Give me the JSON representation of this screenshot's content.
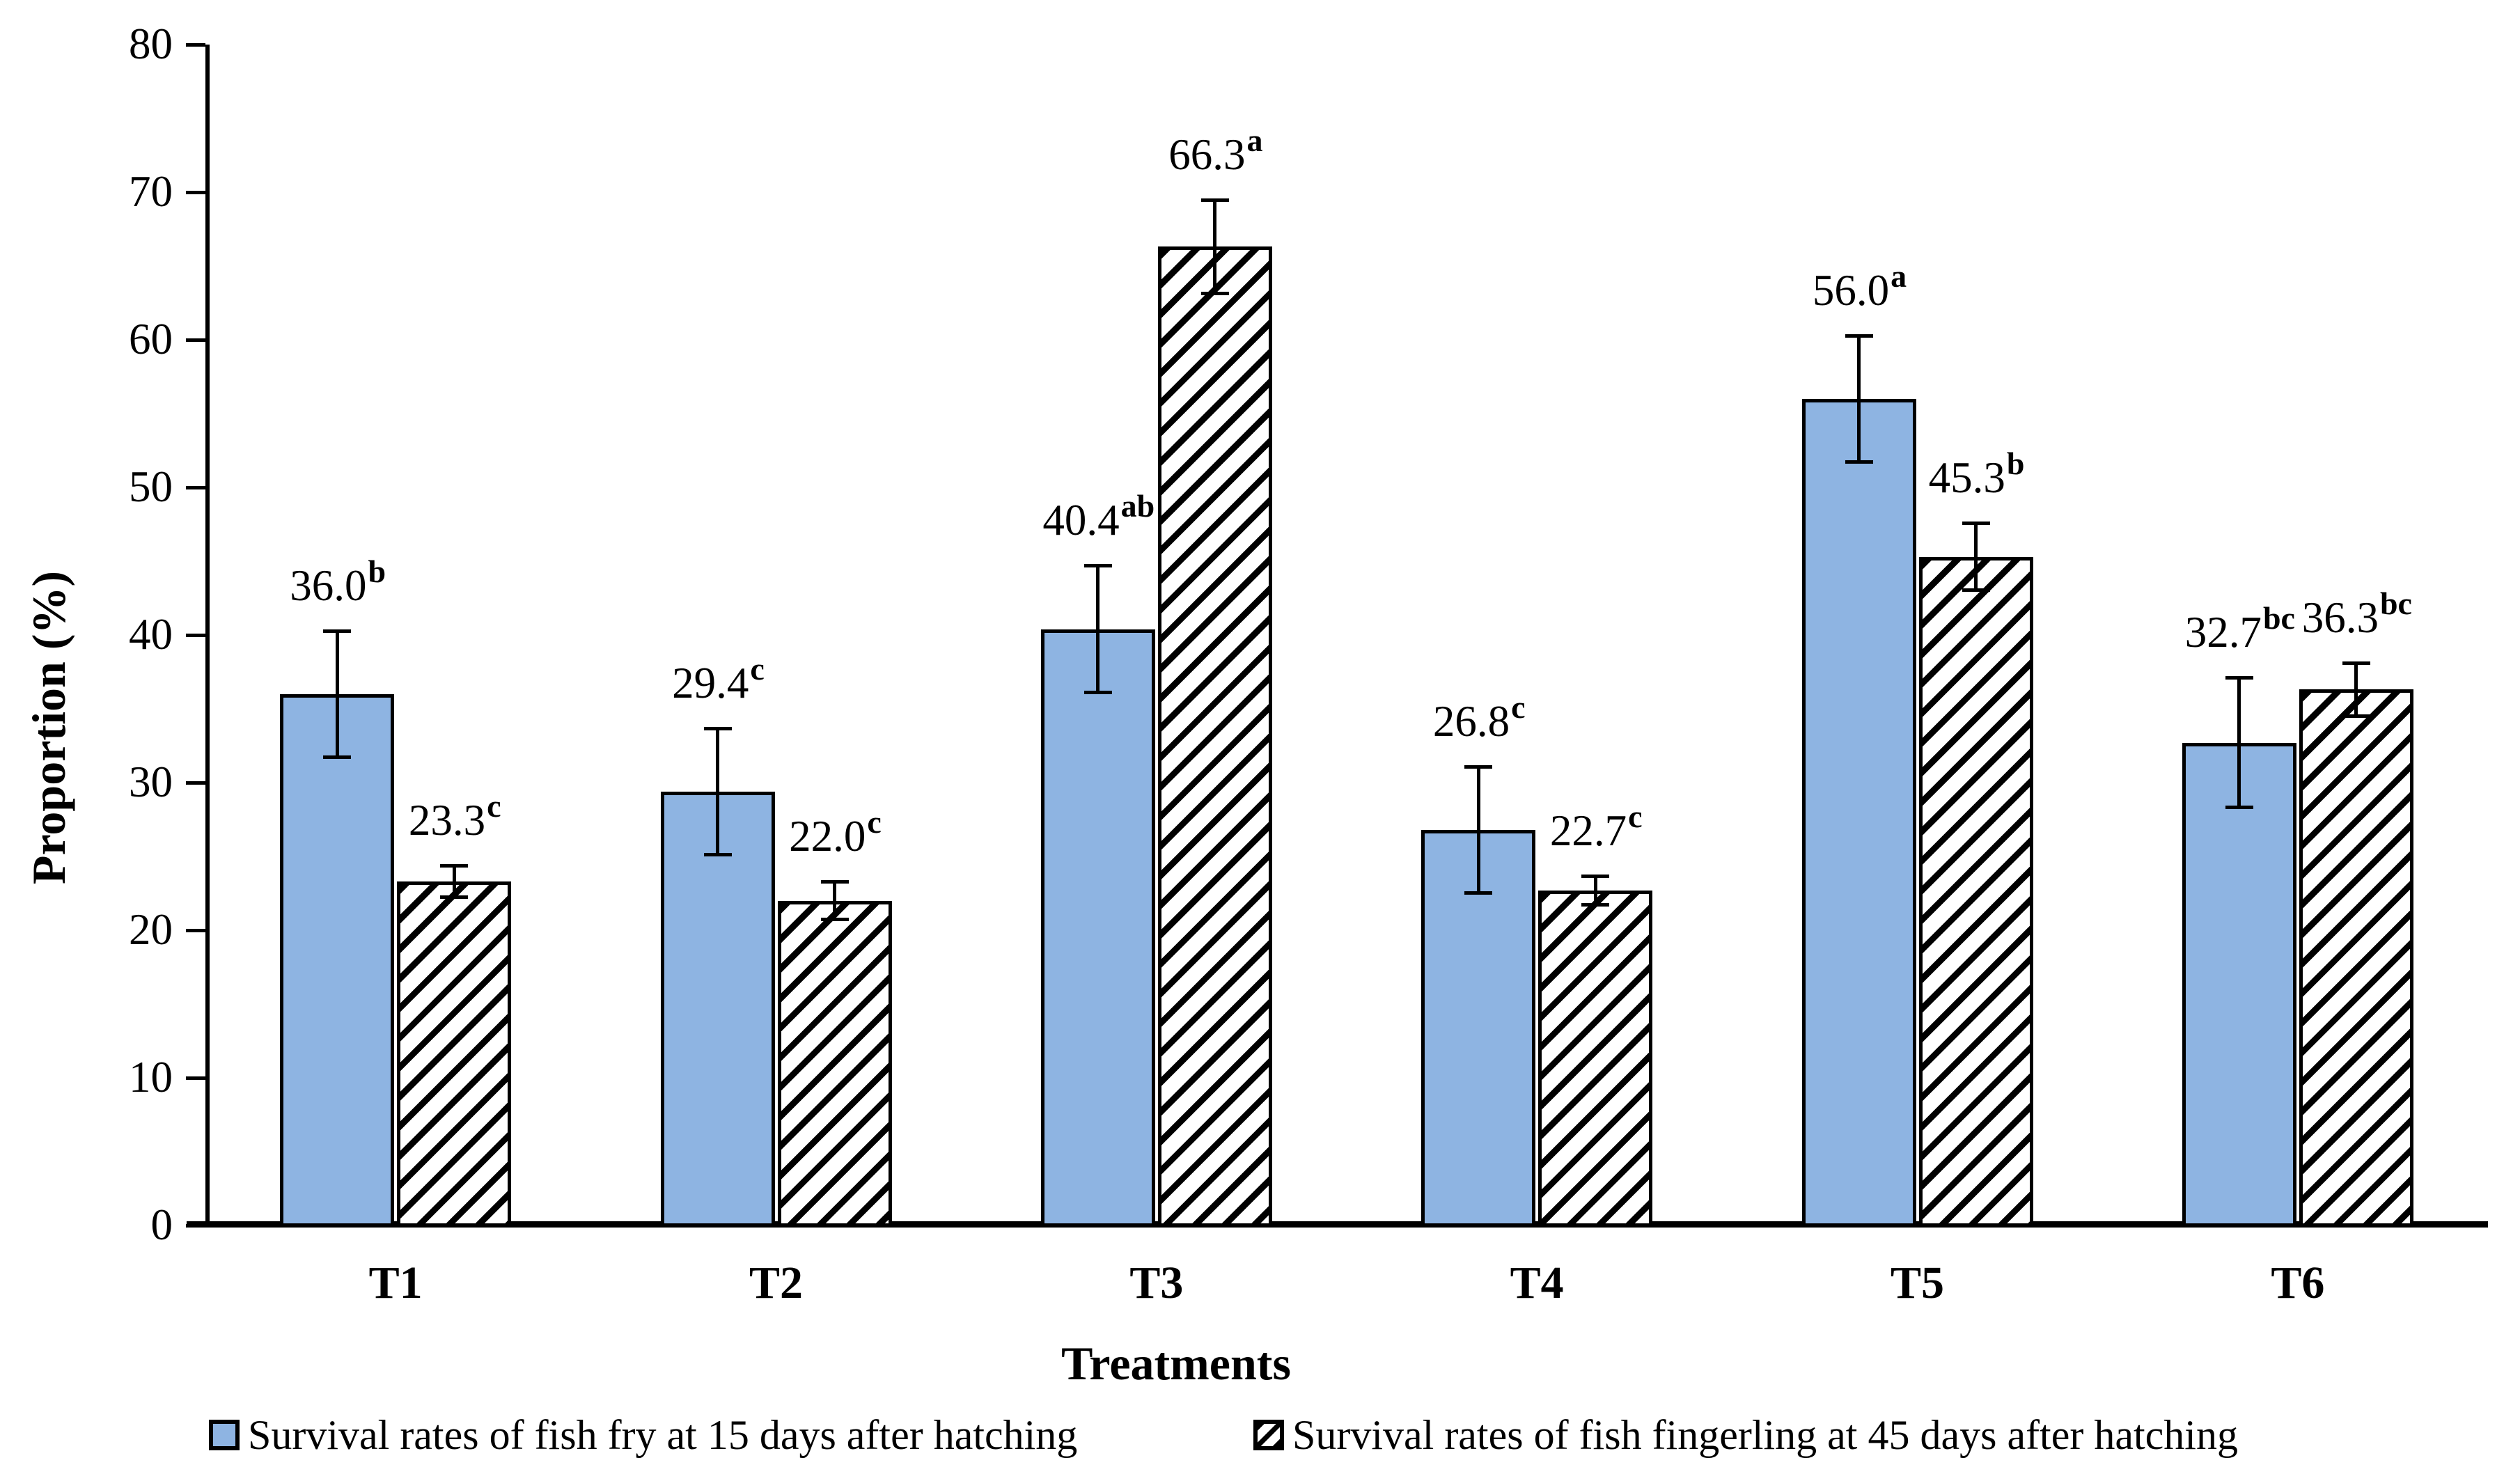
{
  "figure": {
    "background": "#ffffff",
    "axis_color": "#000000"
  },
  "chart_data": {
    "type": "bar",
    "title": "",
    "xlabel": "Treatments",
    "ylabel": "Proportion (%)",
    "ylim": [
      0,
      80
    ],
    "yticks": [
      0,
      10,
      20,
      30,
      40,
      50,
      60,
      70,
      80
    ],
    "grid": false,
    "legend_position": "bottom",
    "error_bars": true,
    "categories": [
      "T1",
      "T2",
      "T3",
      "T4",
      "T5",
      "T6"
    ],
    "series": [
      {
        "name": "Survival rates of fish fry at 15 days after hatching",
        "style": "solid",
        "fill": "#8EB4E2",
        "border": "#000000",
        "values": [
          36.0,
          29.4,
          40.4,
          26.8,
          56.0,
          32.7
        ],
        "errors": [
          4.3,
          4.3,
          4.3,
          4.3,
          4.3,
          4.4
        ],
        "labels": [
          "36.0",
          "29.4",
          "40.4",
          "26.8",
          "56.0",
          "32.7"
        ],
        "superscripts": [
          "b",
          "c",
          "ab",
          "c",
          "a",
          "bc"
        ]
      },
      {
        "name": "Survival rates of fish fingerling at 45 days after hatching",
        "style": "hatched",
        "fill": "#ffffff",
        "border": "#000000",
        "values": [
          23.3,
          22.0,
          66.3,
          22.7,
          45.3,
          36.3
        ],
        "errors": [
          1.1,
          1.3,
          3.2,
          1.0,
          2.3,
          1.8
        ],
        "labels": [
          "23.3",
          "22.0",
          "66.3",
          "22.7",
          "45.3",
          "36.3"
        ],
        "superscripts": [
          "c",
          "c",
          "a",
          "c",
          "b",
          "bc"
        ]
      }
    ]
  }
}
